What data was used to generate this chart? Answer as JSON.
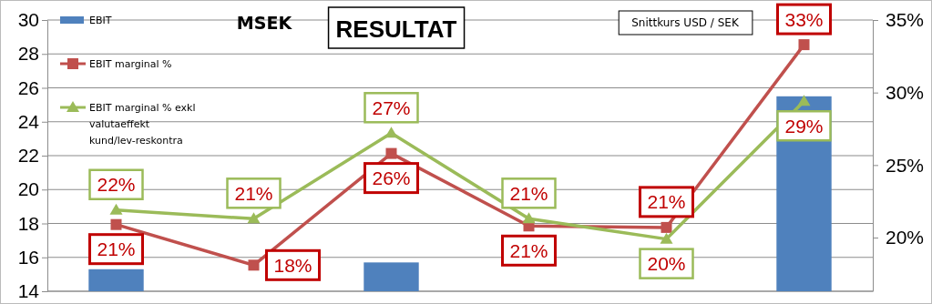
{
  "chart_data": {
    "type": "bar",
    "title": "RESULTAT",
    "ylabel": "MSEK",
    "annotations": [
      "Snittkurs USD / SEK"
    ],
    "categories": [
      null,
      null,
      null,
      null,
      null,
      null
    ],
    "series": [
      {
        "name": "EBIT",
        "color": "#4f81bd",
        "values": [
          15.3,
          null,
          15.7,
          null,
          null,
          25.5
        ]
      },
      {
        "name": "EBIT marginal %",
        "type": "line",
        "axis": "y2",
        "color": "#c0504d",
        "marker": "square",
        "values": [
          20.9,
          18.1,
          25.8,
          20.8,
          20.7,
          33.3
        ],
        "value_labels": [
          "21%",
          "18%",
          "26%",
          "21%",
          "21%",
          "33%"
        ]
      },
      {
        "name": "EBIT marginal % exkl valutaeffekt kund/lev-reskontra",
        "type": "line",
        "axis": "y2",
        "color": "#9bbb59",
        "marker": "triangle",
        "values": [
          21.9,
          21.3,
          27.2,
          21.3,
          19.9,
          29.4
        ],
        "value_labels": [
          "22%",
          "21%",
          "27%",
          "21%",
          "20%",
          "29%"
        ]
      }
    ],
    "ylim": [
      14,
      30
    ],
    "yticks": [
      14,
      16,
      18,
      20,
      22,
      24,
      26,
      28,
      30
    ],
    "y2lim": [
      16.3,
      35
    ],
    "y2ticks": [
      {
        "value": 20,
        "label": "20%"
      },
      {
        "value": 25,
        "label": "25%"
      },
      {
        "value": 30,
        "label": "30%"
      },
      {
        "value": 35,
        "label": "35%"
      }
    ],
    "grid": "y",
    "legend": "top left"
  }
}
